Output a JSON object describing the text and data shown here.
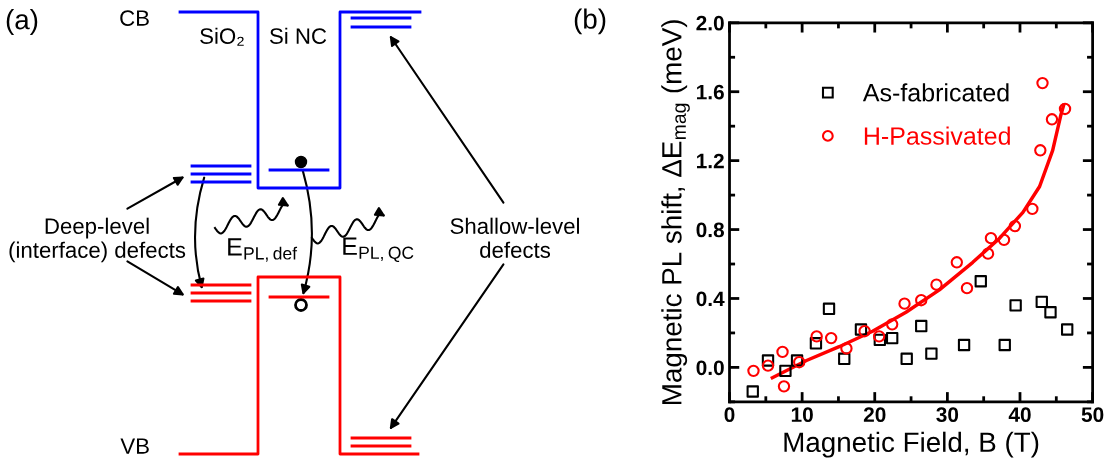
{
  "chart_data": [
    {
      "type": "other",
      "title": "(a)",
      "annotations": [
        "CB",
        "VB",
        "SiO₂",
        "Si NC",
        "Deep-level\n(interface) defects",
        "E$_{PL,def}$",
        "E$_{PL,QC}$",
        "Shallow-level\ndefects"
      ]
    },
    {
      "type": "scatter",
      "title": "(b)",
      "xlabel": "Magnetic Field, B (T)",
      "ylabel": "Magnetic PL shift, ΔE$_{mag}$ (meV)",
      "xlim": [
        0,
        50
      ],
      "xticks": [
        0,
        10,
        20,
        30,
        40,
        50
      ],
      "ylim": [
        -0.2,
        2.0
      ],
      "yticks": [
        {
          "value": 0,
          "label": "0.0"
        },
        {
          "value": 0.4,
          "label": "0.4"
        },
        {
          "value": 0.8,
          "label": "0.8"
        },
        {
          "value": 1.2,
          "label": "1.2"
        },
        {
          "value": 1.6,
          "label": "1.6"
        },
        {
          "value": 2.0,
          "label": "2.0"
        }
      ],
      "grid": false,
      "legend": "top left",
      "series": [
        {
          "name": "As-fabricated",
          "type": "scatter",
          "marker": "square",
          "color": "#000000",
          "x": [
            3.2,
            5.3,
            7.7,
            9.3,
            11.9,
            13.7,
            15.8,
            18.1,
            20.7,
            22.4,
            24.4,
            26.4,
            27.8,
            32.3,
            34.6,
            37.9,
            39.4,
            43.0,
            44.2,
            46.5
          ],
          "values": [
            -0.14,
            0.04,
            -0.02,
            0.04,
            0.14,
            0.34,
            0.05,
            0.22,
            0.16,
            0.17,
            0.05,
            0.24,
            0.08,
            0.13,
            0.5,
            0.13,
            0.36,
            0.38,
            0.32,
            0.22
          ]
        },
        {
          "name": "H-Passivated",
          "type": "scatter",
          "marker": "circle",
          "color": "#ff0000",
          "x": [
            3.3,
            5.3,
            7.3,
            7.5,
            9.6,
            12.0,
            14.0,
            16.1,
            18.6,
            20.6,
            22.4,
            24.1,
            26.4,
            28.5,
            31.3,
            32.7,
            35.6,
            36.0,
            37.8,
            39.3,
            41.7,
            42.8,
            43.1,
            44.4,
            46.2
          ],
          "values": [
            -0.02,
            0.01,
            0.09,
            -0.11,
            0.03,
            0.18,
            0.17,
            0.11,
            0.21,
            0.18,
            0.25,
            0.37,
            0.39,
            0.48,
            0.61,
            0.46,
            0.66,
            0.75,
            0.74,
            0.82,
            0.92,
            1.26,
            1.65,
            1.44,
            1.5
          ]
        },
        {
          "type": "line",
          "color": "#ff0000",
          "x": [
            5.9,
            10.6,
            15.1,
            19.7,
            24.3,
            28.9,
            33.5,
            37.2,
            40.4,
            42.7,
            44.5,
            45.6,
            46.0
          ],
          "values": [
            -0.06,
            0.04,
            0.12,
            0.21,
            0.32,
            0.45,
            0.61,
            0.75,
            0.9,
            1.05,
            1.26,
            1.46,
            1.52
          ]
        }
      ]
    }
  ]
}
